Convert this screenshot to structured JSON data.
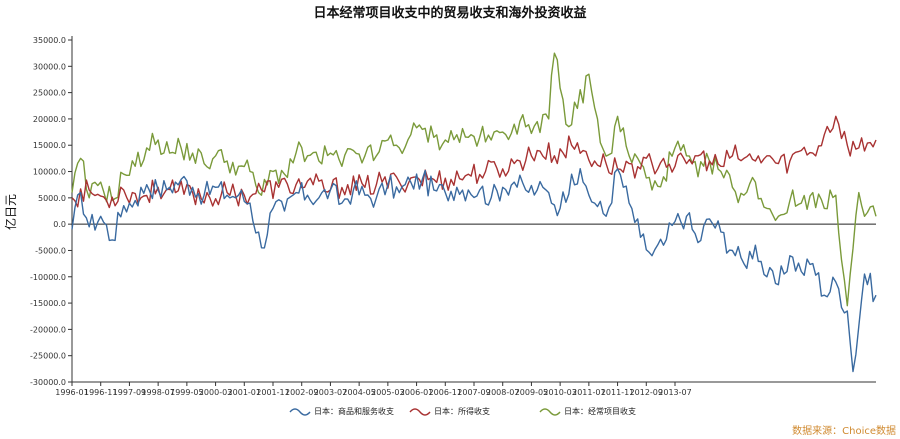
{
  "chart_data": {
    "type": "line",
    "title": "日本经常项目收支中的贸易收支和海外投资收益",
    "ylabel": "亿日元",
    "xlabel": "",
    "ylim": [
      -30000,
      35000
    ],
    "ytick_labels": [
      "35000.0",
      "30000.0",
      "25000.0",
      "20000.0",
      "15000.0",
      "10000.0",
      "5000.0",
      "0.0",
      "-5000.0",
      "-10000.0",
      "-15000.0",
      "-20000.0",
      "-25000.0",
      "-30000.0"
    ],
    "xtick_labels": [
      "1996-01",
      "1996-11",
      "1997-09",
      "1998-07",
      "1999-05",
      "2000-03",
      "2001-01",
      "2001-11",
      "2002-09",
      "2003-07",
      "2004-05",
      "2005-03",
      "2006-01",
      "2006-11",
      "2007-09",
      "2008-07",
      "2009-05",
      "2010-03",
      "2011-01",
      "2011-11",
      "2012-09",
      "2013-07"
    ],
    "series": [
      {
        "name": "日本：商品和服务收支",
        "color": "#3a6aa0",
        "keypoints": [
          [
            0,
            -1000
          ],
          [
            3,
            6000
          ],
          [
            6,
            -500
          ],
          [
            10,
            1500
          ],
          [
            14,
            -3000
          ],
          [
            18,
            3500
          ],
          [
            22,
            4500
          ],
          [
            26,
            7500
          ],
          [
            30,
            6500
          ],
          [
            34,
            7000
          ],
          [
            38,
            8500
          ],
          [
            42,
            7000
          ],
          [
            46,
            5500
          ],
          [
            50,
            7000
          ],
          [
            54,
            5500
          ],
          [
            58,
            5500
          ],
          [
            62,
            4000
          ],
          [
            66,
            -4500
          ],
          [
            70,
            3000
          ],
          [
            74,
            2500
          ],
          [
            78,
            6000
          ],
          [
            82,
            5500
          ],
          [
            86,
            5000
          ],
          [
            90,
            6500
          ],
          [
            94,
            4000
          ],
          [
            98,
            6500
          ],
          [
            102,
            5500
          ],
          [
            106,
            5000
          ],
          [
            110,
            7500
          ],
          [
            114,
            6000
          ],
          [
            118,
            8000
          ],
          [
            122,
            8500
          ],
          [
            126,
            6500
          ],
          [
            130,
            6000
          ],
          [
            134,
            7000
          ],
          [
            138,
            6500
          ],
          [
            142,
            6500
          ],
          [
            146,
            5000
          ],
          [
            150,
            7000
          ],
          [
            154,
            8000
          ],
          [
            158,
            6500
          ],
          [
            162,
            6500
          ],
          [
            166,
            6000
          ],
          [
            170,
            3000
          ],
          [
            174,
            9500
          ],
          [
            178,
            8000
          ],
          [
            182,
            4000
          ],
          [
            186,
            1500
          ],
          [
            190,
            10500
          ],
          [
            194,
            4000
          ],
          [
            198,
            -2500
          ],
          [
            202,
            -6000
          ],
          [
            206,
            -4000
          ],
          [
            210,
            500
          ],
          [
            214,
            1500
          ],
          [
            218,
            -3500
          ],
          [
            222,
            1000
          ],
          [
            226,
            -1500
          ],
          [
            230,
            -5000
          ],
          [
            234,
            -7500
          ],
          [
            238,
            -4000
          ],
          [
            242,
            -10000
          ],
          [
            246,
            -11500
          ],
          [
            250,
            -6000
          ],
          [
            254,
            -9000
          ],
          [
            258,
            -7500
          ],
          [
            262,
            -13500
          ],
          [
            266,
            -11000
          ],
          [
            270,
            -16500
          ],
          [
            272,
            -28000
          ],
          [
            276,
            -9500
          ],
          [
            280,
            -13500
          ]
        ]
      },
      {
        "name": "日本：所得收支",
        "color": "#a83232",
        "keypoints": [
          [
            0,
            5000
          ],
          [
            6,
            6500
          ],
          [
            12,
            4500
          ],
          [
            18,
            6500
          ],
          [
            24,
            5000
          ],
          [
            30,
            7000
          ],
          [
            36,
            6000
          ],
          [
            42,
            6000
          ],
          [
            48,
            5000
          ],
          [
            54,
            6000
          ],
          [
            60,
            5500
          ],
          [
            66,
            6500
          ],
          [
            72,
            7000
          ],
          [
            78,
            7500
          ],
          [
            84,
            7500
          ],
          [
            90,
            6500
          ],
          [
            96,
            7500
          ],
          [
            102,
            7000
          ],
          [
            108,
            8000
          ],
          [
            114,
            8000
          ],
          [
            120,
            9000
          ],
          [
            126,
            8500
          ],
          [
            132,
            8500
          ],
          [
            138,
            9500
          ],
          [
            144,
            10000
          ],
          [
            150,
            10500
          ],
          [
            156,
            12000
          ],
          [
            162,
            14000
          ],
          [
            168,
            13000
          ],
          [
            174,
            15000
          ],
          [
            178,
            14000
          ],
          [
            182,
            12000
          ],
          [
            186,
            11500
          ],
          [
            190,
            10500
          ],
          [
            194,
            11500
          ],
          [
            198,
            10500
          ],
          [
            202,
            11500
          ],
          [
            206,
            12500
          ],
          [
            210,
            11000
          ],
          [
            214,
            11500
          ],
          [
            218,
            13000
          ],
          [
            222,
            12000
          ],
          [
            226,
            11000
          ],
          [
            230,
            13000
          ],
          [
            234,
            12500
          ],
          [
            238,
            12000
          ],
          [
            242,
            13000
          ],
          [
            246,
            11500
          ],
          [
            250,
            12000
          ],
          [
            254,
            14000
          ],
          [
            258,
            13500
          ],
          [
            262,
            17000
          ],
          [
            266,
            20500
          ],
          [
            270,
            15000
          ],
          [
            274,
            14500
          ],
          [
            278,
            15500
          ],
          [
            280,
            16000
          ]
        ]
      },
      {
        "name": "日本：经常项目收支",
        "color": "#7a9a3a",
        "keypoints": [
          [
            0,
            6000
          ],
          [
            3,
            12500
          ],
          [
            6,
            5000
          ],
          [
            10,
            8000
          ],
          [
            14,
            4500
          ],
          [
            18,
            9500
          ],
          [
            22,
            11000
          ],
          [
            26,
            14500
          ],
          [
            30,
            16000
          ],
          [
            34,
            13500
          ],
          [
            38,
            14500
          ],
          [
            42,
            13500
          ],
          [
            46,
            11500
          ],
          [
            50,
            13000
          ],
          [
            54,
            12000
          ],
          [
            58,
            11000
          ],
          [
            62,
            10000
          ],
          [
            66,
            5500
          ],
          [
            70,
            10000
          ],
          [
            74,
            9500
          ],
          [
            78,
            13500
          ],
          [
            82,
            13000
          ],
          [
            86,
            12000
          ],
          [
            90,
            13500
          ],
          [
            94,
            11000
          ],
          [
            98,
            14000
          ],
          [
            102,
            13000
          ],
          [
            106,
            13000
          ],
          [
            110,
            16000
          ],
          [
            114,
            14500
          ],
          [
            118,
            17000
          ],
          [
            122,
            18000
          ],
          [
            126,
            16500
          ],
          [
            130,
            16000
          ],
          [
            134,
            17000
          ],
          [
            138,
            16500
          ],
          [
            142,
            16500
          ],
          [
            146,
            16000
          ],
          [
            150,
            17500
          ],
          [
            154,
            19000
          ],
          [
            158,
            18500
          ],
          [
            162,
            19500
          ],
          [
            166,
            20000
          ],
          [
            168,
            32500
          ],
          [
            172,
            19000
          ],
          [
            176,
            22000
          ],
          [
            180,
            28500
          ],
          [
            184,
            15500
          ],
          [
            188,
            13500
          ],
          [
            190,
            20500
          ],
          [
            194,
            13000
          ],
          [
            198,
            11500
          ],
          [
            202,
            6500
          ],
          [
            206,
            9000
          ],
          [
            210,
            14500
          ],
          [
            214,
            13000
          ],
          [
            218,
            9000
          ],
          [
            222,
            12000
          ],
          [
            226,
            10000
          ],
          [
            230,
            7000
          ],
          [
            234,
            5500
          ],
          [
            238,
            8000
          ],
          [
            242,
            3000
          ],
          [
            246,
            1500
          ],
          [
            250,
            4500
          ],
          [
            254,
            4000
          ],
          [
            258,
            6000
          ],
          [
            262,
            3000
          ],
          [
            266,
            5500
          ],
          [
            270,
            -15500
          ],
          [
            274,
            6000
          ],
          [
            276,
            1500
          ],
          [
            280,
            1500
          ]
        ]
      }
    ]
  },
  "title": "日本经常项目收支中的贸易收支和海外投资收益",
  "ylabel": "亿日元",
  "source_note": "数据来源：Choice数据"
}
